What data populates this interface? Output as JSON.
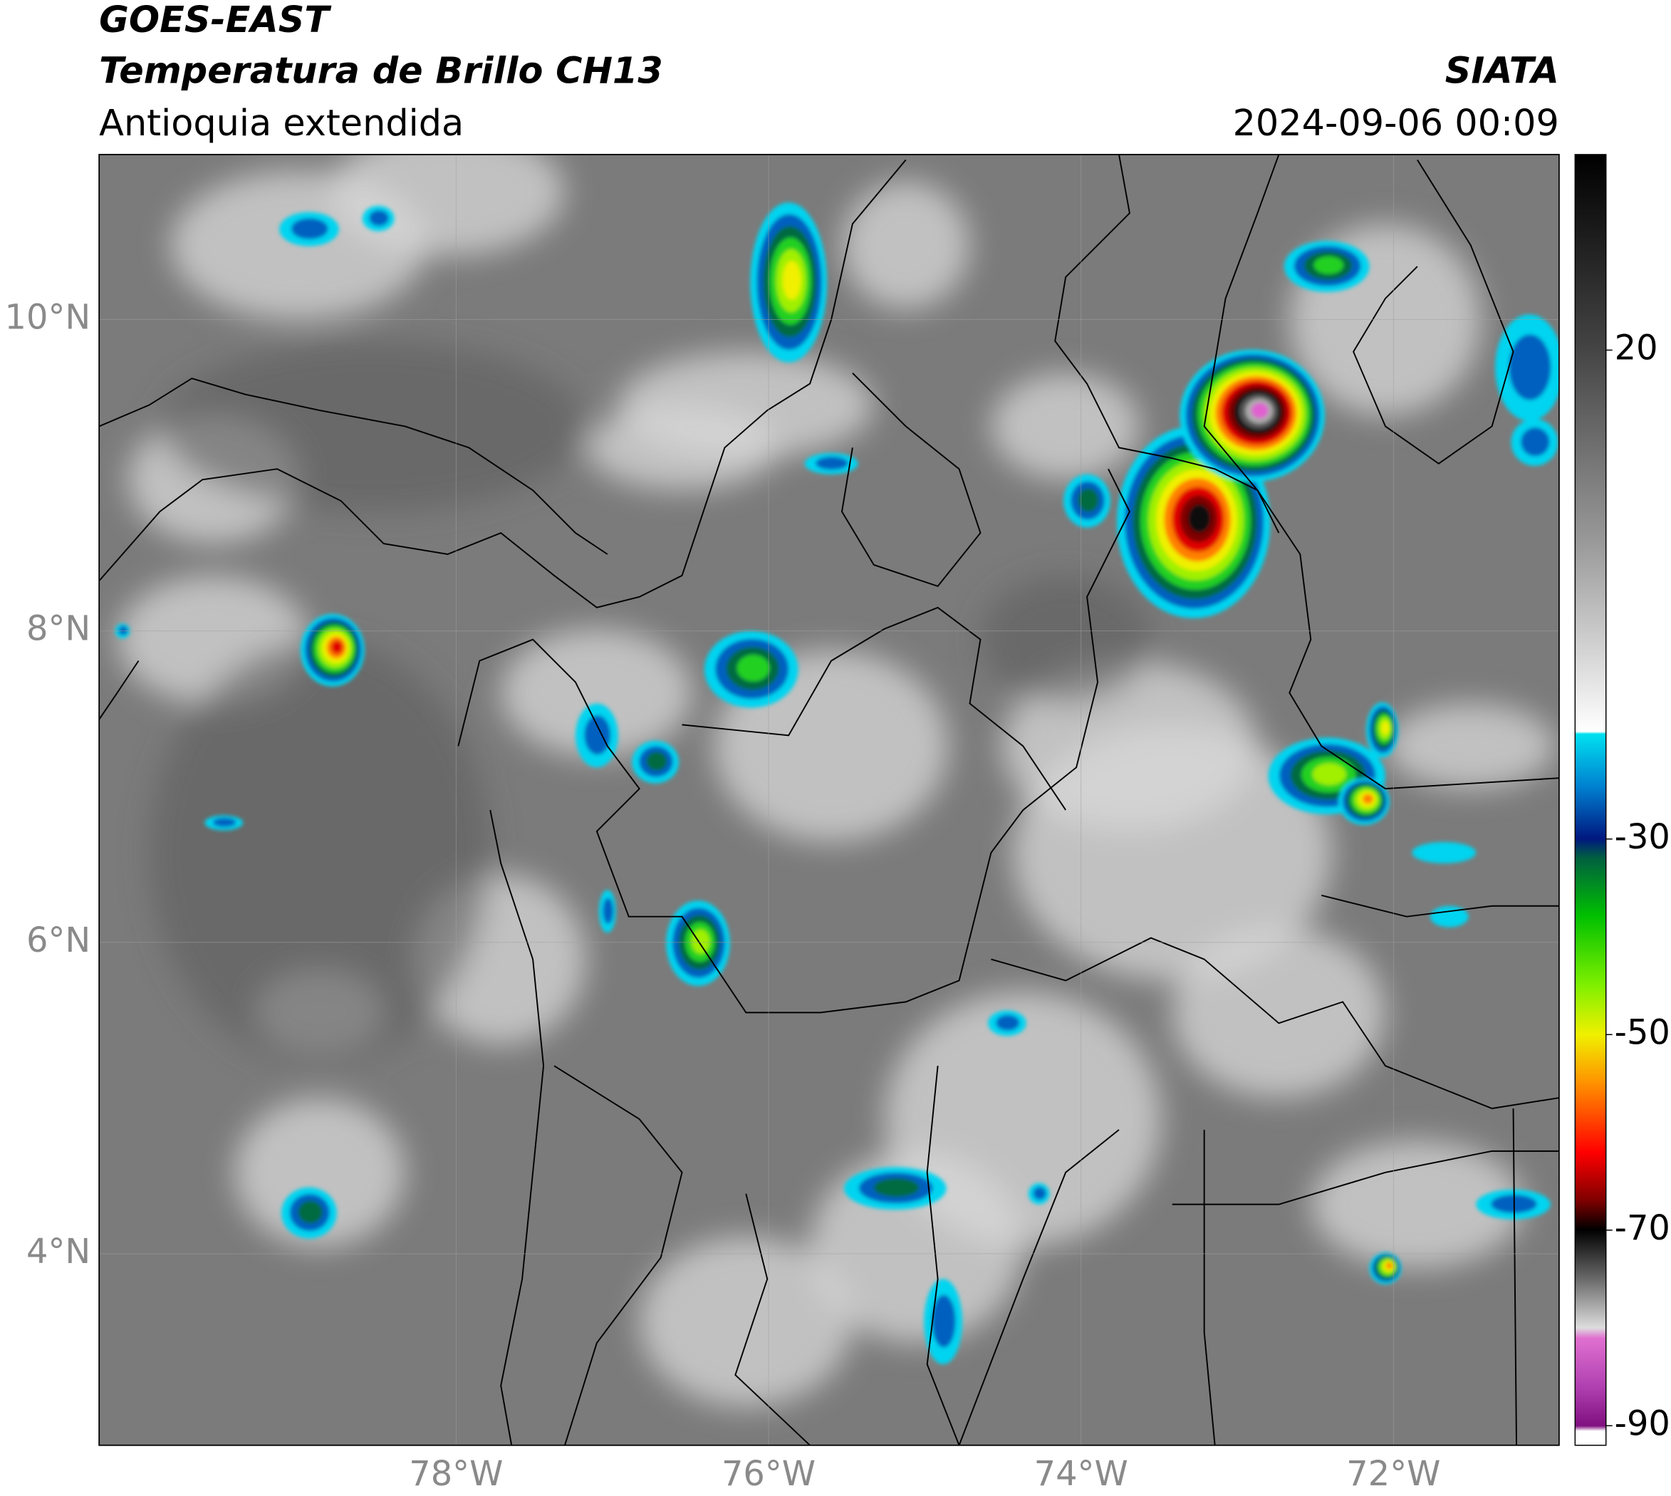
{
  "header": {
    "title": "GOES-EAST",
    "subtitle": "Temperatura de Brillo CH13",
    "region": "Antioquia extendida",
    "source": "SIATA",
    "datetime": "2024-09-06 00:09"
  },
  "map": {
    "xlim": [
      -80.285,
      -70.94
    ],
    "ylim": [
      2.77,
      11.06
    ],
    "xticks": [
      {
        "value": -78,
        "label": "78°W"
      },
      {
        "value": -76,
        "label": "76°W"
      },
      {
        "value": -74,
        "label": "74°W"
      },
      {
        "value": -72,
        "label": "72°W"
      }
    ],
    "yticks": [
      {
        "value": 4,
        "label": "4°N"
      },
      {
        "value": 6,
        "label": "6°N"
      },
      {
        "value": 8,
        "label": "8°N"
      },
      {
        "value": 10,
        "label": "10°N"
      }
    ],
    "grid": true
  },
  "colorbar": {
    "lim": [
      -92,
      40
    ],
    "ticks": [
      -90,
      -70,
      -50,
      -30,
      20
    ]
  }
}
